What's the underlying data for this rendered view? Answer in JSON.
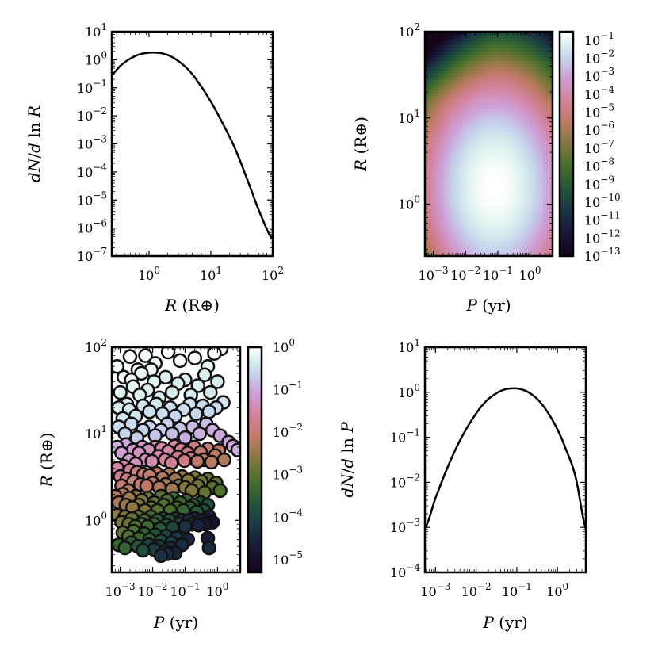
{
  "chart_data": [
    {
      "panel": "top-left",
      "type": "line",
      "x_label": "R (R⊕)",
      "y_label": "dN/d ln R",
      "x_scale": "log",
      "y_scale": "log",
      "x_range": [
        0.25,
        100
      ],
      "y_range": [
        1e-07,
        10
      ],
      "x_ticks": [
        "10^0",
        "10^1",
        "10^2"
      ],
      "y_ticks": [
        "10^-7",
        "10^-6",
        "10^-5",
        "10^-4",
        "10^-3",
        "10^-2",
        "10^-1",
        "10^0",
        "10^1"
      ],
      "series": [
        {
          "x": [
            0.25,
            0.35,
            0.5,
            0.7,
            1.0,
            1.25,
            1.6,
            2.2,
            3.2,
            4.5,
            6.3,
            10,
            15.8,
            25,
            40,
            63,
            100
          ],
          "y": [
            0.3,
            0.63,
            1.1,
            1.55,
            1.78,
            1.8,
            1.7,
            1.35,
            0.8,
            0.4,
            0.15,
            0.032,
            0.005,
            0.00063,
            4.5e-05,
            3.2e-06,
            4e-07
          ]
        }
      ]
    },
    {
      "panel": "top-right",
      "type": "heatmap",
      "x_label": "P (yr)",
      "y_label": "R (R⊕)",
      "x_scale": "log",
      "y_scale": "log",
      "x_range": [
        0.00055,
        5
      ],
      "y_range": [
        0.25,
        100
      ],
      "x_ticks": [
        "10^-3",
        "10^-2",
        "10^-1",
        "10^0"
      ],
      "y_ticks": [
        "10^0",
        "10^1",
        "10^2"
      ],
      "colorbar_ticks": [
        "10^-1",
        "10^-2",
        "10^-3",
        "10^-4",
        "10^-5",
        "10^-6",
        "10^-7",
        "10^-8",
        "10^-9",
        "10^-10",
        "10^-11",
        "10^-12",
        "10^-13"
      ],
      "colorbar_range": [
        1e-13,
        0.3
      ],
      "peak": {
        "P": 0.08,
        "R": 1.6
      }
    },
    {
      "panel": "bottom-left",
      "type": "scatter",
      "x_label": "P (yr)",
      "y_label": "R (R⊕)",
      "x_scale": "log",
      "y_scale": "log",
      "x_range": [
        0.00055,
        5
      ],
      "y_range": [
        0.25,
        100
      ],
      "x_ticks": [
        "10^-3",
        "10^-2",
        "10^-1",
        "10^0"
      ],
      "y_ticks": [
        "10^0",
        "10^1",
        "10^2"
      ],
      "colorbar_ticks": [
        "10^0",
        "10^-1",
        "10^-2",
        "10^-3",
        "10^-4",
        "10^-5"
      ],
      "colorbar_range": [
        5e-06,
        1
      ],
      "points": [
        [
          0.0008,
          60,
          0.9
        ],
        [
          0.0013,
          45,
          0.8
        ],
        [
          0.002,
          78,
          0.95
        ],
        [
          0.0035,
          55,
          0.85
        ],
        [
          0.006,
          80,
          0.9
        ],
        [
          0.012,
          65,
          0.8
        ],
        [
          0.03,
          88,
          0.95
        ],
        [
          0.07,
          70,
          0.9
        ],
        [
          0.2,
          75,
          0.85
        ],
        [
          0.8,
          85,
          0.9
        ],
        [
          1.3,
          96,
          1.0
        ],
        [
          0.5,
          60,
          0.7
        ],
        [
          0.001,
          30,
          0.6
        ],
        [
          0.0016,
          22,
          0.5
        ],
        [
          0.0025,
          35,
          0.6
        ],
        [
          0.004,
          28,
          0.55
        ],
        [
          0.007,
          32,
          0.5
        ],
        [
          0.011,
          40,
          0.6
        ],
        [
          0.016,
          26,
          0.5
        ],
        [
          0.025,
          45,
          0.55
        ],
        [
          0.04,
          30,
          0.45
        ],
        [
          0.06,
          38,
          0.5
        ],
        [
          0.1,
          42,
          0.5
        ],
        [
          0.15,
          28,
          0.45
        ],
        [
          0.25,
          36,
          0.5
        ],
        [
          0.4,
          48,
          0.55
        ],
        [
          0.6,
          30,
          0.4
        ],
        [
          1.0,
          40,
          0.45
        ],
        [
          0.0045,
          50,
          0.7
        ],
        [
          0.009,
          55,
          0.75
        ],
        [
          0.0022,
          42,
          0.7
        ],
        [
          0.0009,
          20,
          0.5
        ],
        [
          0.0012,
          15,
          0.4
        ],
        [
          0.0019,
          19,
          0.45
        ],
        [
          0.003,
          16,
          0.35
        ],
        [
          0.005,
          21,
          0.4
        ],
        [
          0.008,
          18,
          0.35
        ],
        [
          0.013,
          22,
          0.4
        ],
        [
          0.02,
          17,
          0.3
        ],
        [
          0.035,
          20,
          0.3
        ],
        [
          0.05,
          16,
          0.25
        ],
        [
          0.09,
          19,
          0.3
        ],
        [
          0.14,
          22,
          0.35
        ],
        [
          0.22,
          17,
          0.25
        ],
        [
          0.35,
          21,
          0.3
        ],
        [
          0.55,
          18,
          0.25
        ],
        [
          0.9,
          20,
          0.3
        ],
        [
          1.5,
          23,
          0.35
        ],
        [
          0.0009,
          12,
          0.3
        ],
        [
          0.0014,
          10,
          0.25
        ],
        [
          0.0022,
          13,
          0.3
        ],
        [
          0.0033,
          9,
          0.2
        ],
        [
          0.005,
          11,
          0.25
        ],
        [
          0.008,
          12,
          0.22
        ],
        [
          0.012,
          9.5,
          0.18
        ],
        [
          0.018,
          11,
          0.2
        ],
        [
          0.028,
          13,
          0.2
        ],
        [
          0.04,
          10,
          0.15
        ],
        [
          0.07,
          11.5,
          0.18
        ],
        [
          0.1,
          9,
          0.12
        ],
        [
          0.17,
          12,
          0.15
        ],
        [
          0.28,
          10,
          0.12
        ],
        [
          0.45,
          13,
          0.15
        ],
        [
          0.7,
          11,
          0.12
        ],
        [
          1.2,
          9.5,
          0.1
        ],
        [
          2.2,
          8,
          0.1
        ],
        [
          4.2,
          6.5,
          0.12
        ],
        [
          3.0,
          7.2,
          0.1
        ],
        [
          0.0008,
          7,
          0.12
        ],
        [
          0.0011,
          6,
          0.08
        ],
        [
          0.0015,
          7.5,
          0.1
        ],
        [
          0.0019,
          5,
          0.06
        ],
        [
          0.0025,
          6.5,
          0.07
        ],
        [
          0.003,
          4.5,
          0.05
        ],
        [
          0.0038,
          6,
          0.05
        ],
        [
          0.0048,
          7,
          0.06
        ],
        [
          0.006,
          5,
          0.04
        ],
        [
          0.0075,
          6.5,
          0.045
        ],
        [
          0.0095,
          4.8,
          0.035
        ],
        [
          0.012,
          7,
          0.04
        ],
        [
          0.015,
          5.5,
          0.03
        ],
        [
          0.019,
          6.8,
          0.035
        ],
        [
          0.024,
          5,
          0.025
        ],
        [
          0.03,
          6.2,
          0.03
        ],
        [
          0.038,
          4.6,
          0.02
        ],
        [
          0.048,
          7.2,
          0.025
        ],
        [
          0.06,
          5.4,
          0.02
        ],
        [
          0.075,
          6.6,
          0.02
        ],
        [
          0.095,
          4.9,
          0.015
        ],
        [
          0.12,
          6,
          0.015
        ],
        [
          0.15,
          5.2,
          0.012
        ],
        [
          0.19,
          7,
          0.015
        ],
        [
          0.24,
          4.8,
          0.01
        ],
        [
          0.3,
          6.1,
          0.01
        ],
        [
          0.38,
          5,
          0.008
        ],
        [
          0.5,
          6.7,
          0.01
        ],
        [
          0.65,
          4.7,
          0.007
        ],
        [
          0.85,
          5.6,
          0.007
        ],
        [
          1.1,
          6.4,
          0.008
        ],
        [
          1.6,
          5,
          0.006
        ],
        [
          0.0008,
          4,
          0.03
        ],
        [
          0.001,
          3.2,
          0.02
        ],
        [
          0.0013,
          4.2,
          0.025
        ],
        [
          0.0016,
          3,
          0.015
        ],
        [
          0.002,
          3.8,
          0.02
        ],
        [
          0.0026,
          2.8,
          0.012
        ],
        [
          0.0033,
          3.6,
          0.014
        ],
        [
          0.0042,
          2.6,
          0.01
        ],
        [
          0.0052,
          3.4,
          0.011
        ],
        [
          0.0065,
          2.5,
          0.008
        ],
        [
          0.008,
          3.3,
          0.009
        ],
        [
          0.01,
          2.7,
          0.007
        ],
        [
          0.013,
          3.5,
          0.008
        ],
        [
          0.016,
          2.4,
          0.006
        ],
        [
          0.02,
          3.1,
          0.006
        ],
        [
          0.025,
          2.6,
          0.005
        ],
        [
          0.032,
          3.4,
          0.005
        ],
        [
          0.04,
          2.3,
          0.004
        ],
        [
          0.05,
          3,
          0.004
        ],
        [
          0.063,
          2.5,
          0.003
        ],
        [
          0.08,
          3.2,
          0.003
        ],
        [
          0.1,
          2.4,
          0.0025
        ],
        [
          0.125,
          2.9,
          0.0025
        ],
        [
          0.16,
          2.2,
          0.002
        ],
        [
          0.2,
          3.1,
          0.002
        ],
        [
          0.25,
          2.5,
          0.0015
        ],
        [
          0.32,
          2.8,
          0.0015
        ],
        [
          0.4,
          2.1,
          0.0012
        ],
        [
          0.5,
          3,
          0.0012
        ],
        [
          0.7,
          2.4,
          0.001
        ],
        [
          0.9,
          2.7,
          0.001
        ],
        [
          1.2,
          2.2,
          0.0008
        ],
        [
          0.0011,
          2.5,
          0.01
        ],
        [
          0.0018,
          2.2,
          0.008
        ],
        [
          0.0007,
          1.9,
          0.006
        ],
        [
          0.0009,
          1.6,
          0.005
        ],
        [
          0.0012,
          2,
          0.005
        ],
        [
          0.0015,
          1.5,
          0.004
        ],
        [
          0.0019,
          1.8,
          0.004
        ],
        [
          0.0024,
          1.4,
          0.003
        ],
        [
          0.003,
          1.9,
          0.003
        ],
        [
          0.0037,
          1.5,
          0.0025
        ],
        [
          0.0046,
          1.7,
          0.002
        ],
        [
          0.0058,
          1.3,
          0.0018
        ],
        [
          0.0072,
          1.8,
          0.0018
        ],
        [
          0.009,
          1.4,
          0.0015
        ],
        [
          0.011,
          1.6,
          0.0012
        ],
        [
          0.014,
          1.3,
          0.001
        ],
        [
          0.018,
          1.9,
          0.0012
        ],
        [
          0.022,
          1.5,
          0.0009
        ],
        [
          0.028,
          1.7,
          0.0008
        ],
        [
          0.035,
          1.3,
          0.0007
        ],
        [
          0.044,
          1.8,
          0.0007
        ],
        [
          0.055,
          1.4,
          0.0006
        ],
        [
          0.07,
          1.6,
          0.0005
        ],
        [
          0.088,
          1.3,
          0.0004
        ],
        [
          0.11,
          1.7,
          0.0004
        ],
        [
          0.14,
          1.4,
          0.0003
        ],
        [
          0.18,
          1.5,
          0.0003
        ],
        [
          0.23,
          1.25,
          0.00025
        ],
        [
          0.3,
          1.6,
          0.0002
        ],
        [
          0.38,
          1.3,
          0.00018
        ],
        [
          0.5,
          1.5,
          0.00015
        ],
        [
          0.0008,
          1.15,
          0.003
        ],
        [
          0.0011,
          0.95,
          0.002
        ],
        [
          0.0014,
          1.1,
          0.002
        ],
        [
          0.0018,
          0.9,
          0.0015
        ],
        [
          0.0023,
          1.05,
          0.0012
        ],
        [
          0.0029,
          0.85,
          0.001
        ],
        [
          0.0036,
          1.1,
          0.001
        ],
        [
          0.0045,
          0.9,
          0.0008
        ],
        [
          0.0056,
          1.0,
          0.0006
        ],
        [
          0.007,
          0.85,
          0.0005
        ],
        [
          0.0088,
          1.1,
          0.0005
        ],
        [
          0.011,
          0.9,
          0.0004
        ],
        [
          0.014,
          1.0,
          0.0003
        ],
        [
          0.017,
          0.8,
          0.00025
        ],
        [
          0.021,
          1.05,
          0.00025
        ],
        [
          0.026,
          0.88,
          0.0002
        ],
        [
          0.033,
          1.0,
          0.00015
        ],
        [
          0.041,
          0.82,
          0.00012
        ],
        [
          0.052,
          1.05,
          0.0001
        ],
        [
          0.065,
          0.9,
          8e-05
        ],
        [
          0.08,
          1.0,
          6e-05
        ],
        [
          0.1,
          0.85,
          5e-05
        ],
        [
          0.13,
          1.0,
          4e-05
        ],
        [
          0.16,
          0.9,
          3e-05
        ],
        [
          0.2,
          1.05,
          3e-05
        ],
        [
          0.26,
          0.88,
          2.5e-05
        ],
        [
          0.33,
          1.0,
          2e-05
        ],
        [
          0.42,
          0.9,
          1.5e-05
        ],
        [
          0.55,
          1.1,
          2e-05
        ],
        [
          0.7,
          0.95,
          1.2e-05
        ],
        [
          0.0012,
          0.72,
          0.0012
        ],
        [
          0.0018,
          0.65,
          0.0009
        ],
        [
          0.0026,
          0.75,
          0.0008
        ],
        [
          0.0038,
          0.62,
          0.0005
        ],
        [
          0.0055,
          0.7,
          0.0004
        ],
        [
          0.008,
          0.6,
          0.0003
        ],
        [
          0.012,
          0.68,
          0.0002
        ],
        [
          0.018,
          0.58,
          0.00015
        ],
        [
          0.026,
          0.66,
          0.0001
        ],
        [
          0.038,
          0.55,
          8e-05
        ],
        [
          0.055,
          0.63,
          6e-05
        ],
        [
          0.08,
          0.52,
          4e-05
        ],
        [
          0.12,
          0.6,
          3e-05
        ],
        [
          0.5,
          0.62,
          2e-05
        ],
        [
          0.55,
          0.48,
          4e-05
        ],
        [
          0.0009,
          0.52,
          0.0005
        ],
        [
          0.0014,
          0.48,
          0.0004
        ],
        [
          0.0022,
          0.55,
          0.0003
        ],
        [
          0.0035,
          0.5,
          0.0002
        ],
        [
          0.005,
          0.45,
          0.00015
        ],
        [
          0.0075,
          0.52,
          0.0001
        ],
        [
          0.011,
          0.46,
          8e-05
        ],
        [
          0.016,
          0.5,
          6e-05
        ],
        [
          0.024,
          0.44,
          5e-05
        ],
        [
          0.035,
          0.48,
          4e-05
        ],
        [
          0.05,
          0.42,
          3e-05
        ],
        [
          0.018,
          0.39,
          5e-05
        ],
        [
          0.028,
          0.41,
          4e-05
        ]
      ]
    },
    {
      "panel": "bottom-right",
      "type": "line",
      "x_label": "P (yr)",
      "y_label": "dN/d ln P",
      "x_scale": "log",
      "y_scale": "log",
      "x_range": [
        0.00055,
        5
      ],
      "y_range": [
        0.0001,
        10
      ],
      "x_ticks": [
        "10^-3",
        "10^-2",
        "10^-1",
        "10^0"
      ],
      "y_ticks": [
        "10^-4",
        "10^-3",
        "10^-2",
        "10^-1",
        "10^0",
        "10^1"
      ],
      "series": [
        {
          "x": [
            0.00055,
            0.001,
            0.002,
            0.004,
            0.008,
            0.016,
            0.03,
            0.05,
            0.08,
            0.12,
            0.2,
            0.35,
            0.6,
            1.0,
            1.6,
            2.8,
            5
          ],
          "y": [
            0.00095,
            0.0045,
            0.022,
            0.085,
            0.25,
            0.58,
            0.92,
            1.15,
            1.22,
            1.18,
            0.98,
            0.65,
            0.34,
            0.15,
            0.055,
            0.013,
            0.00095
          ]
        }
      ]
    }
  ]
}
